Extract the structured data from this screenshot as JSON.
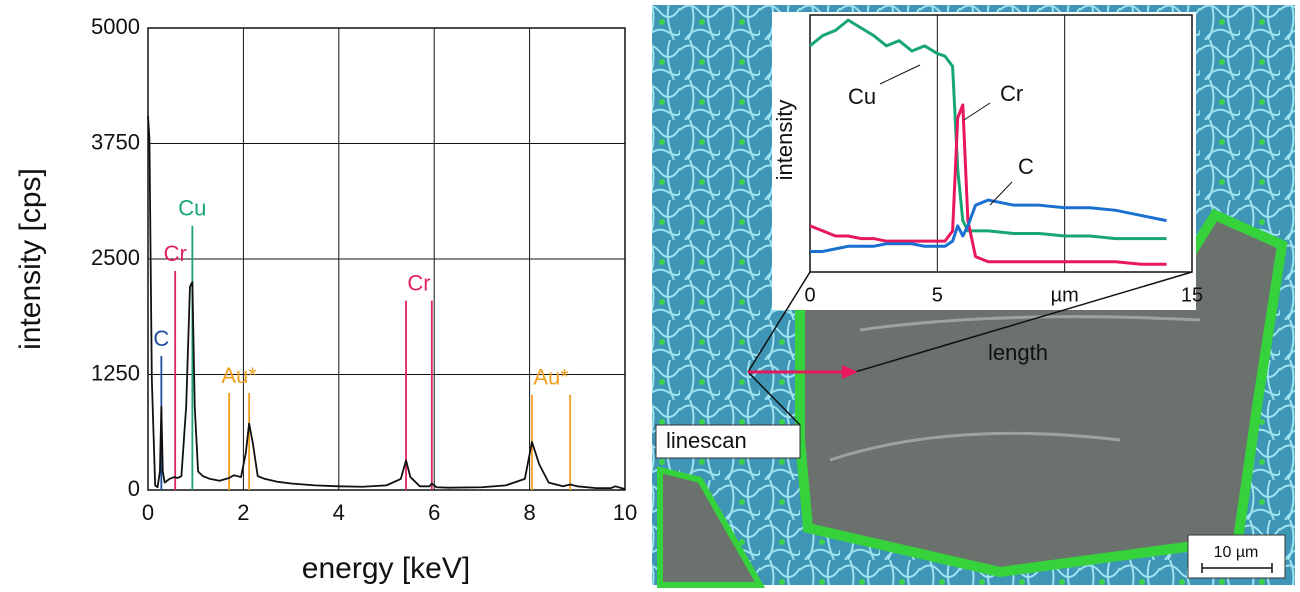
{
  "chart_data": [
    {
      "type": "line",
      "xlabel": "energy [keV]",
      "ylabel": "intensity [cps]",
      "xlim": [
        0,
        10
      ],
      "xticks": [
        0,
        2,
        4,
        6,
        8,
        10
      ],
      "ylim": [
        0,
        5000
      ],
      "yticks": [
        0,
        1250,
        2500,
        3750,
        5000
      ],
      "grid": true,
      "x": [
        0,
        0.03,
        0.08,
        0.15,
        0.2,
        0.25,
        0.28,
        0.31,
        0.35,
        0.45,
        0.55,
        0.62,
        0.7,
        0.8,
        0.88,
        0.93,
        0.98,
        1.05,
        1.15,
        1.3,
        1.5,
        1.7,
        1.8,
        1.95,
        2.05,
        2.12,
        2.2,
        2.3,
        2.45,
        2.7,
        3,
        3.5,
        4,
        4.5,
        5,
        5.3,
        5.41,
        5.5,
        5.7,
        5.9,
        5.95,
        6.05,
        6.3,
        7,
        7.5,
        7.9,
        8.05,
        8.2,
        8.4,
        8.7,
        8.85,
        9,
        9.4,
        9.7,
        9.8,
        10
      ],
      "series": [
        {
          "color": "#111111",
          "values": [
            4050,
            3800,
            1200,
            50,
            30,
            200,
            900,
            200,
            80,
            120,
            140,
            130,
            150,
            900,
            2200,
            2250,
            900,
            200,
            150,
            120,
            100,
            130,
            160,
            140,
            400,
            720,
            500,
            150,
            120,
            90,
            70,
            50,
            40,
            35,
            50,
            120,
            320,
            140,
            40,
            40,
            70,
            30,
            25,
            30,
            50,
            120,
            520,
            280,
            80,
            40,
            60,
            40,
            20,
            20,
            40,
            10
          ]
        }
      ],
      "peak_markers": [
        {
          "label": "C",
          "color": "#1f4e9c",
          "lines": [
            {
              "x": 0.28,
              "top": 1450
            }
          ]
        },
        {
          "label": "Cr",
          "color": "#e0245e",
          "lines": [
            {
              "x": 0.57,
              "top": 2370
            }
          ]
        },
        {
          "label": "Cu",
          "color": "#17a673",
          "lines": [
            {
              "x": 0.93,
              "top": 2860
            }
          ]
        },
        {
          "label": "Au*",
          "color": "#f0a020",
          "lines": [
            {
              "x": 1.7,
              "top": 1050
            },
            {
              "x": 2.12,
              "top": 1050
            }
          ]
        },
        {
          "label": "Cr",
          "color": "#e0245e",
          "lines": [
            {
              "x": 5.41,
              "top": 2050
            },
            {
              "x": 5.95,
              "top": 2050
            }
          ]
        },
        {
          "label": "Au*",
          "color": "#f0a020",
          "lines": [
            {
              "x": 8.05,
              "top": 1030
            },
            {
              "x": 8.85,
              "top": 1030
            }
          ]
        }
      ]
    },
    {
      "type": "line",
      "xlabel": "length",
      "ylabel": "intensity",
      "xlim": [
        0,
        15
      ],
      "xticks": [
        0,
        5,
        {
          "value": 10,
          "label": "µm"
        },
        15
      ],
      "ylim": [
        0,
        100
      ],
      "grid": true,
      "x": [
        0,
        0.5,
        1,
        1.5,
        2,
        2.5,
        3,
        3.5,
        4,
        4.5,
        5,
        5.3,
        5.6,
        5.8,
        6,
        6.2,
        6.5,
        7,
        8,
        9,
        10,
        11,
        12,
        13,
        14
      ],
      "series": [
        {
          "name": "Cu",
          "color": "#17a673",
          "values": [
            88,
            92,
            94,
            98,
            95,
            92,
            88,
            90,
            86,
            88,
            85,
            84,
            80,
            40,
            20,
            16,
            16,
            16,
            15,
            15,
            14,
            14,
            13,
            13,
            13
          ]
        },
        {
          "name": "Cr",
          "color": "#e8185c",
          "values": [
            18,
            16,
            14,
            14,
            13,
            13,
            12,
            12,
            12,
            12,
            12,
            12,
            16,
            60,
            65,
            20,
            6,
            4,
            4,
            4,
            4,
            4,
            4,
            3,
            3
          ]
        },
        {
          "name": "C",
          "color": "#1a6fd0",
          "values": [
            8,
            8,
            9,
            10,
            10,
            10,
            11,
            11,
            11,
            10,
            10,
            10,
            12,
            18,
            14,
            18,
            26,
            28,
            26,
            26,
            25,
            25,
            24,
            22,
            20
          ]
        }
      ]
    }
  ],
  "image": {
    "linescan_label": "linescan",
    "scale_bar": "10 µm"
  }
}
